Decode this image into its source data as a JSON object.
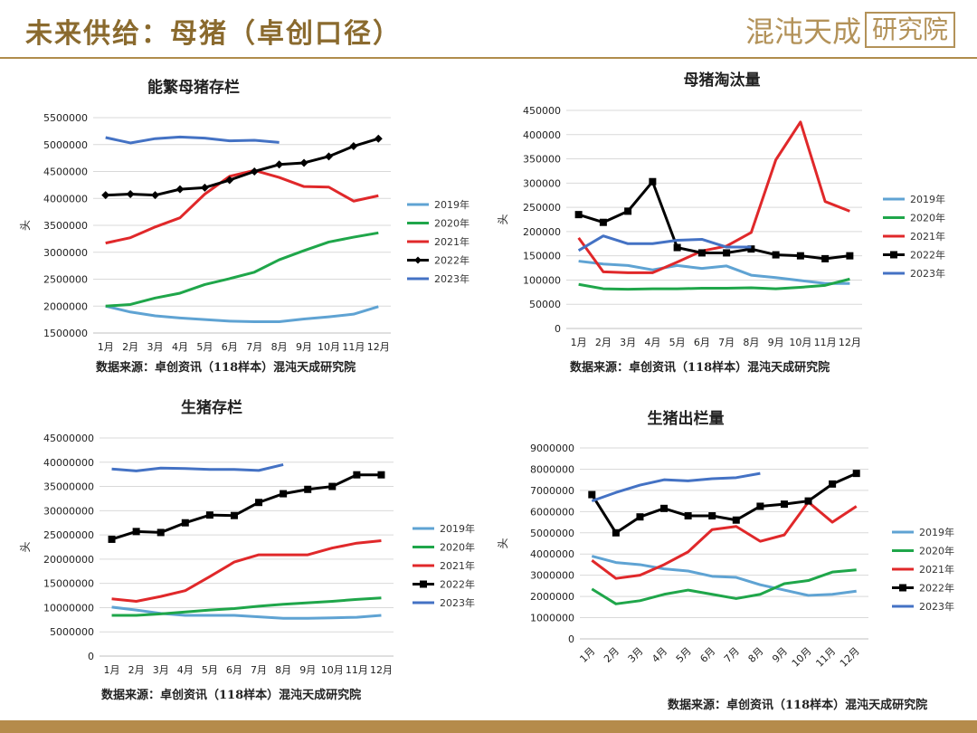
{
  "header": {
    "title": "未来供给：母猪（卓创口径）",
    "brand_main": "混沌天成",
    "brand_box": "研究院"
  },
  "colors": {
    "2019年": "#5fa3d3",
    "2020年": "#1fa64a",
    "2021年": "#e0282a",
    "2022年": "#000000",
    "2023年": "#4472c4"
  },
  "chart_data": [
    {
      "id": "sows",
      "type": "line",
      "title": "能繁母猪存栏",
      "ylabel": "头",
      "xlabel": "",
      "categories": [
        "1月",
        "2月",
        "3月",
        "4月",
        "5月",
        "6月",
        "7月",
        "8月",
        "9月",
        "10月",
        "11月",
        "12月"
      ],
      "ylim": [
        1500000,
        5500000
      ],
      "ytick_step": 500000,
      "grid": true,
      "legend": "right",
      "source": "数据来源：卓创资讯（118样本）混沌天成研究院",
      "series": [
        {
          "name": "2019年",
          "marker": "none",
          "values": [
            2000000,
            1890000,
            1820000,
            1780000,
            1750000,
            1720000,
            1710000,
            1710000,
            1760000,
            1800000,
            1850000,
            1990000
          ]
        },
        {
          "name": "2020年",
          "marker": "none",
          "values": [
            2000000,
            2030000,
            2150000,
            2240000,
            2400000,
            2510000,
            2630000,
            2860000,
            3030000,
            3190000,
            3280000,
            3360000
          ]
        },
        {
          "name": "2021年",
          "marker": "none",
          "values": [
            3170000,
            3270000,
            3470000,
            3640000,
            4080000,
            4410000,
            4520000,
            4390000,
            4220000,
            4210000,
            3950000,
            4050000
          ]
        },
        {
          "name": "2022年",
          "marker": "diamond",
          "values": [
            4060000,
            4080000,
            4060000,
            4170000,
            4200000,
            4340000,
            4500000,
            4630000,
            4660000,
            4780000,
            4970000,
            5110000
          ]
        },
        {
          "name": "2023年",
          "marker": "none",
          "values": [
            5130000,
            5030000,
            5110000,
            5140000,
            5120000,
            5070000,
            5080000,
            5040000,
            null,
            null,
            null,
            null
          ]
        }
      ]
    },
    {
      "id": "culling",
      "type": "line",
      "title": "母猪淘汰量",
      "ylabel": "头",
      "xlabel": "",
      "categories": [
        "1月",
        "2月",
        "3月",
        "4月",
        "5月",
        "6月",
        "7月",
        "8月",
        "9月",
        "10月",
        "11月",
        "12月"
      ],
      "ylim": [
        0,
        450000
      ],
      "ytick_step": 50000,
      "grid": true,
      "legend": "right",
      "source": "数据来源：卓创资讯（118样本）混沌天成研究院",
      "series": [
        {
          "name": "2019年",
          "marker": "none",
          "values": [
            139000,
            133000,
            130000,
            121000,
            130000,
            124000,
            129000,
            110000,
            105000,
            99000,
            93000,
            93000
          ]
        },
        {
          "name": "2020年",
          "marker": "none",
          "values": [
            91000,
            82000,
            81000,
            82000,
            82000,
            83000,
            83000,
            84000,
            82000,
            85000,
            89000,
            102000
          ]
        },
        {
          "name": "2021年",
          "marker": "none",
          "values": [
            187000,
            117000,
            115000,
            115000,
            137000,
            160000,
            170000,
            198000,
            348000,
            426000,
            262000,
            242000
          ]
        },
        {
          "name": "2022年",
          "marker": "square",
          "values": [
            235000,
            219000,
            242000,
            303000,
            167000,
            156000,
            156000,
            164000,
            152000,
            150000,
            144000,
            150000
          ]
        },
        {
          "name": "2023年",
          "marker": "none",
          "values": [
            161000,
            191000,
            175000,
            175000,
            182000,
            184000,
            168000,
            168000,
            null,
            null,
            null,
            null
          ]
        }
      ]
    },
    {
      "id": "hogs",
      "type": "line",
      "title": "生猪存栏",
      "ylabel": "头",
      "xlabel": "",
      "categories": [
        "1月",
        "2月",
        "3月",
        "4月",
        "5月",
        "6月",
        "7月",
        "8月",
        "9月",
        "10月",
        "11月",
        "12月"
      ],
      "ylim": [
        0,
        45000000
      ],
      "ytick_step": 5000000,
      "grid": true,
      "legend": "right",
      "source": "数据来源：卓创资讯（118样本）混沌天成研究院",
      "series": [
        {
          "name": "2019年",
          "marker": "none",
          "values": [
            10100000,
            9500000,
            8800000,
            8400000,
            8400000,
            8400000,
            8100000,
            7800000,
            7800000,
            7900000,
            8000000,
            8400000
          ]
        },
        {
          "name": "2020年",
          "marker": "none",
          "values": [
            8400000,
            8400000,
            8700000,
            9100000,
            9500000,
            9800000,
            10300000,
            10700000,
            11000000,
            11300000,
            11700000,
            12000000
          ]
        },
        {
          "name": "2021年",
          "marker": "none",
          "values": [
            11800000,
            11300000,
            12300000,
            13500000,
            16400000,
            19400000,
            20900000,
            20900000,
            20900000,
            22300000,
            23300000,
            23800000
          ]
        },
        {
          "name": "2022年",
          "marker": "square",
          "values": [
            24100000,
            25700000,
            25500000,
            27500000,
            29100000,
            29000000,
            31700000,
            33500000,
            34400000,
            35000000,
            37400000,
            37400000
          ]
        },
        {
          "name": "2023年",
          "marker": "none",
          "values": [
            38600000,
            38200000,
            38800000,
            38700000,
            38500000,
            38500000,
            38300000,
            39500000,
            null,
            null,
            null,
            null
          ]
        }
      ]
    },
    {
      "id": "slaughter",
      "type": "line",
      "title": "生猪出栏量",
      "ylabel": "头",
      "xlabel": "",
      "categories": [
        "1月",
        "2月",
        "3月",
        "4月",
        "5月",
        "6月",
        "7月",
        "8月",
        "9月",
        "10月",
        "11月",
        "12月"
      ],
      "ylim": [
        0,
        9000000
      ],
      "ytick_step": 1000000,
      "grid": true,
      "legend": "right",
      "rotate_xticks": true,
      "source": "数据来源：卓创资讯（118样本）混沌天成研究院",
      "series": [
        {
          "name": "2019年",
          "marker": "none",
          "values": [
            3900000,
            3600000,
            3500000,
            3300000,
            3200000,
            2950000,
            2900000,
            2550000,
            2300000,
            2050000,
            2100000,
            2250000
          ]
        },
        {
          "name": "2020年",
          "marker": "none",
          "values": [
            2350000,
            1650000,
            1800000,
            2100000,
            2300000,
            2100000,
            1900000,
            2100000,
            2600000,
            2750000,
            3150000,
            3250000
          ]
        },
        {
          "name": "2021年",
          "marker": "none",
          "values": [
            3700000,
            2850000,
            3000000,
            3500000,
            4100000,
            5150000,
            5300000,
            4600000,
            4900000,
            6450000,
            5500000,
            6250000
          ]
        },
        {
          "name": "2022年",
          "marker": "square",
          "values": [
            6800000,
            5000000,
            5750000,
            6150000,
            5800000,
            5800000,
            5600000,
            6250000,
            6350000,
            6500000,
            7300000,
            7800000
          ]
        },
        {
          "name": "2023年",
          "marker": "none",
          "values": [
            6500000,
            6900000,
            7250000,
            7500000,
            7450000,
            7550000,
            7600000,
            7800000,
            null,
            null,
            null,
            null
          ]
        }
      ]
    }
  ]
}
